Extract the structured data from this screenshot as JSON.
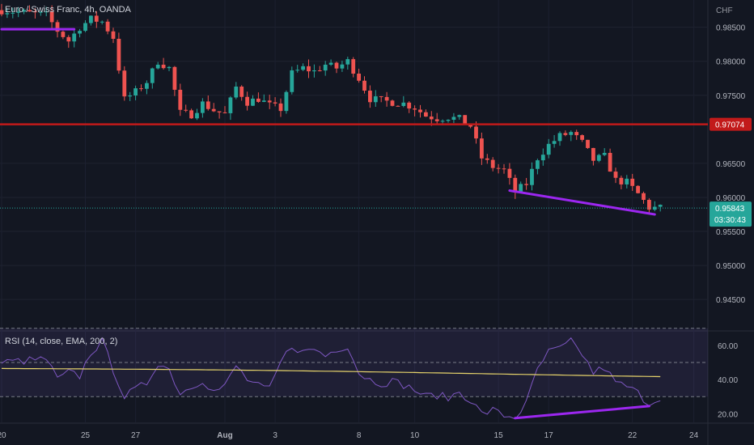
{
  "header": {
    "symbol_title": "Euro / Swiss Franc, 4h, OANDA",
    "currency": "CHF"
  },
  "rsi_panel": {
    "title": "RSI (14, close, EMA, 200, 2)"
  },
  "price_tags": {
    "level_label": "0.97074",
    "last_price_label": "0.95843",
    "countdown_label": "03:30:43"
  },
  "colors": {
    "background": "#131722",
    "up": "#26a69a",
    "down": "#ef5350",
    "resistance": "#c21a1a",
    "trendline": "#9c27f0",
    "rsi_line": "#7e57c2",
    "rsi_ema": "#e6d36b",
    "last_price": "#26a69a"
  },
  "chart_data": {
    "type": "candlestick",
    "timeframe": "4h",
    "x_ticks": [
      "20",
      "25",
      "27",
      "Aug",
      "3",
      "8",
      "10",
      "15",
      "17",
      "22",
      "24"
    ],
    "y_ticks": [
      "0.98500",
      "0.98000",
      "0.97500",
      "0.96500",
      "0.96000",
      "0.95500",
      "0.95000",
      "0.94500"
    ],
    "ylim": [
      0.9405,
      0.989
    ],
    "resistance_level": 0.97074,
    "last_price": 0.95843,
    "anchors": [
      [
        0,
        0.9875
      ],
      [
        8,
        0.9868
      ],
      [
        10,
        0.9845
      ],
      [
        12,
        0.983
      ],
      [
        14,
        0.985
      ],
      [
        16,
        0.9862
      ],
      [
        18,
        0.9858
      ],
      [
        20,
        0.9835
      ],
      [
        22,
        0.9744
      ],
      [
        24,
        0.9755
      ],
      [
        26,
        0.977
      ],
      [
        28,
        0.98
      ],
      [
        30,
        0.979
      ],
      [
        32,
        0.9724
      ],
      [
        34,
        0.9722
      ],
      [
        36,
        0.9738
      ],
      [
        38,
        0.9728
      ],
      [
        40,
        0.9722
      ],
      [
        42,
        0.9762
      ],
      [
        44,
        0.974
      ],
      [
        46,
        0.9745
      ],
      [
        48,
        0.9735
      ],
      [
        50,
        0.973
      ],
      [
        52,
        0.9782
      ],
      [
        54,
        0.979
      ],
      [
        56,
        0.9785
      ],
      [
        58,
        0.9795
      ],
      [
        60,
        0.979
      ],
      [
        62,
        0.98
      ],
      [
        64,
        0.9775
      ],
      [
        66,
        0.9745
      ],
      [
        68,
        0.9742
      ],
      [
        70,
        0.974
      ],
      [
        72,
        0.9738
      ],
      [
        74,
        0.9732
      ],
      [
        76,
        0.972
      ],
      [
        78,
        0.9716
      ],
      [
        80,
        0.9718
      ],
      [
        82,
        0.9715
      ],
      [
        84,
        0.9705
      ],
      [
        86,
        0.9658
      ],
      [
        88,
        0.9645
      ],
      [
        90,
        0.964
      ],
      [
        92,
        0.9608
      ],
      [
        94,
        0.962
      ],
      [
        96,
        0.9658
      ],
      [
        98,
        0.9677
      ],
      [
        100,
        0.969
      ],
      [
        102,
        0.9695
      ],
      [
        104,
        0.968
      ],
      [
        106,
        0.9655
      ],
      [
        108,
        0.966
      ],
      [
        110,
        0.9625
      ],
      [
        112,
        0.9622
      ],
      [
        114,
        0.9605
      ],
      [
        116,
        0.9585
      ],
      [
        118,
        0.95843
      ]
    ],
    "rsi": {
      "y_ticks": [
        "60.00",
        "40.00",
        "20.00"
      ],
      "ylim": [
        15,
        68
      ],
      "levels": [
        70,
        50,
        30
      ],
      "anchors": [
        [
          0,
          50
        ],
        [
          8,
          52
        ],
        [
          10,
          40
        ],
        [
          12,
          44
        ],
        [
          14,
          42
        ],
        [
          16,
          56
        ],
        [
          18,
          62
        ],
        [
          20,
          46
        ],
        [
          22,
          30
        ],
        [
          24,
          34
        ],
        [
          26,
          38
        ],
        [
          28,
          50
        ],
        [
          30,
          46
        ],
        [
          32,
          32
        ],
        [
          34,
          36
        ],
        [
          36,
          40
        ],
        [
          38,
          33
        ],
        [
          40,
          36
        ],
        [
          42,
          48
        ],
        [
          44,
          40
        ],
        [
          46,
          36
        ],
        [
          48,
          34
        ],
        [
          50,
          50
        ],
        [
          52,
          60
        ],
        [
          54,
          56
        ],
        [
          56,
          58
        ],
        [
          58,
          54
        ],
        [
          60,
          58
        ],
        [
          62,
          60
        ],
        [
          64,
          44
        ],
        [
          66,
          40
        ],
        [
          68,
          38
        ],
        [
          70,
          39
        ],
        [
          72,
          37
        ],
        [
          74,
          34
        ],
        [
          76,
          30
        ],
        [
          78,
          31
        ],
        [
          80,
          29
        ],
        [
          82,
          33
        ],
        [
          84,
          28
        ],
        [
          86,
          20
        ],
        [
          88,
          22
        ],
        [
          90,
          19
        ],
        [
          92,
          18
        ],
        [
          94,
          26
        ],
        [
          96,
          46
        ],
        [
          98,
          56
        ],
        [
          100,
          58
        ],
        [
          102,
          62
        ],
        [
          104,
          55
        ],
        [
          106,
          44
        ],
        [
          108,
          47
        ],
        [
          110,
          38
        ],
        [
          112,
          36
        ],
        [
          114,
          32
        ],
        [
          116,
          26
        ],
        [
          118,
          30
        ]
      ],
      "ema_start": 46.5,
      "ema_end": 42.2
    },
    "annotations": {
      "price_trendlines": [
        {
          "from": [
            0,
            0.9847
          ],
          "to": [
            13,
            0.9847
          ]
        },
        {
          "from": [
            91,
            0.961
          ],
          "to": [
            117,
            0.9575
          ]
        }
      ],
      "rsi_trendlines": [
        {
          "from": [
            92,
            17.5
          ],
          "to": [
            116,
            24.5
          ]
        }
      ]
    }
  }
}
